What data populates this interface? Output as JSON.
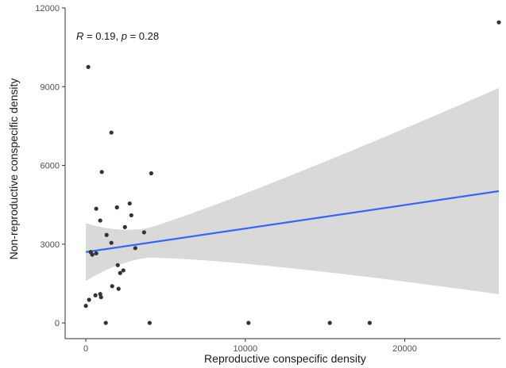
{
  "chart_data": {
    "type": "scatter",
    "title": "",
    "xlabel": "Reproductive conspecific density",
    "ylabel": "Non-reproductive conspecific density",
    "xlim": [
      -1300,
      26000
    ],
    "ylim": [
      -600,
      12000
    ],
    "x_ticks": [
      0,
      10000,
      20000
    ],
    "x_tick_labels": [
      "0",
      "10000",
      "20000"
    ],
    "y_ticks": [
      0,
      3000,
      6000,
      9000,
      12000
    ],
    "y_tick_labels": [
      "0",
      "3000",
      "6000",
      "9000",
      "12000"
    ],
    "grid": false,
    "legend": "none",
    "annotation": {
      "R_label": "R",
      "R_text": " = 0.19, ",
      "p_label": "p",
      "p_text": " = 0.28"
    },
    "points": [
      {
        "x": 150,
        "y": 9750
      },
      {
        "x": 0,
        "y": 650
      },
      {
        "x": 200,
        "y": 880
      },
      {
        "x": 300,
        "y": 2700
      },
      {
        "x": 400,
        "y": 2600
      },
      {
        "x": 650,
        "y": 2650
      },
      {
        "x": 650,
        "y": 4350
      },
      {
        "x": 600,
        "y": 1050
      },
      {
        "x": 900,
        "y": 1100
      },
      {
        "x": 950,
        "y": 980
      },
      {
        "x": 900,
        "y": 3900
      },
      {
        "x": 1000,
        "y": 5750
      },
      {
        "x": 1250,
        "y": 0
      },
      {
        "x": 1300,
        "y": 3350
      },
      {
        "x": 1600,
        "y": 7250
      },
      {
        "x": 1600,
        "y": 3050
      },
      {
        "x": 1650,
        "y": 1400
      },
      {
        "x": 1950,
        "y": 4400
      },
      {
        "x": 2000,
        "y": 2200
      },
      {
        "x": 2050,
        "y": 1300
      },
      {
        "x": 2150,
        "y": 1900
      },
      {
        "x": 2350,
        "y": 2000
      },
      {
        "x": 2450,
        "y": 3650
      },
      {
        "x": 2750,
        "y": 4550
      },
      {
        "x": 2850,
        "y": 4100
      },
      {
        "x": 3100,
        "y": 2850
      },
      {
        "x": 3650,
        "y": 3450
      },
      {
        "x": 4100,
        "y": 5700
      },
      {
        "x": 4000,
        "y": 0
      },
      {
        "x": 10200,
        "y": 0
      },
      {
        "x": 15300,
        "y": 0
      },
      {
        "x": 17800,
        "y": 0
      },
      {
        "x": 25900,
        "y": 11450
      }
    ],
    "regression": {
      "x_range": [
        0,
        25900
      ],
      "y_fit": [
        2700,
        5020
      ],
      "ci_lower": [
        1550,
        1150
      ],
      "ci_upper": [
        3800,
        8950
      ],
      "line_color": "#3366ff",
      "band_color": "#d9d9d9"
    },
    "point_color": "#333333",
    "axis_color": "#333333"
  }
}
